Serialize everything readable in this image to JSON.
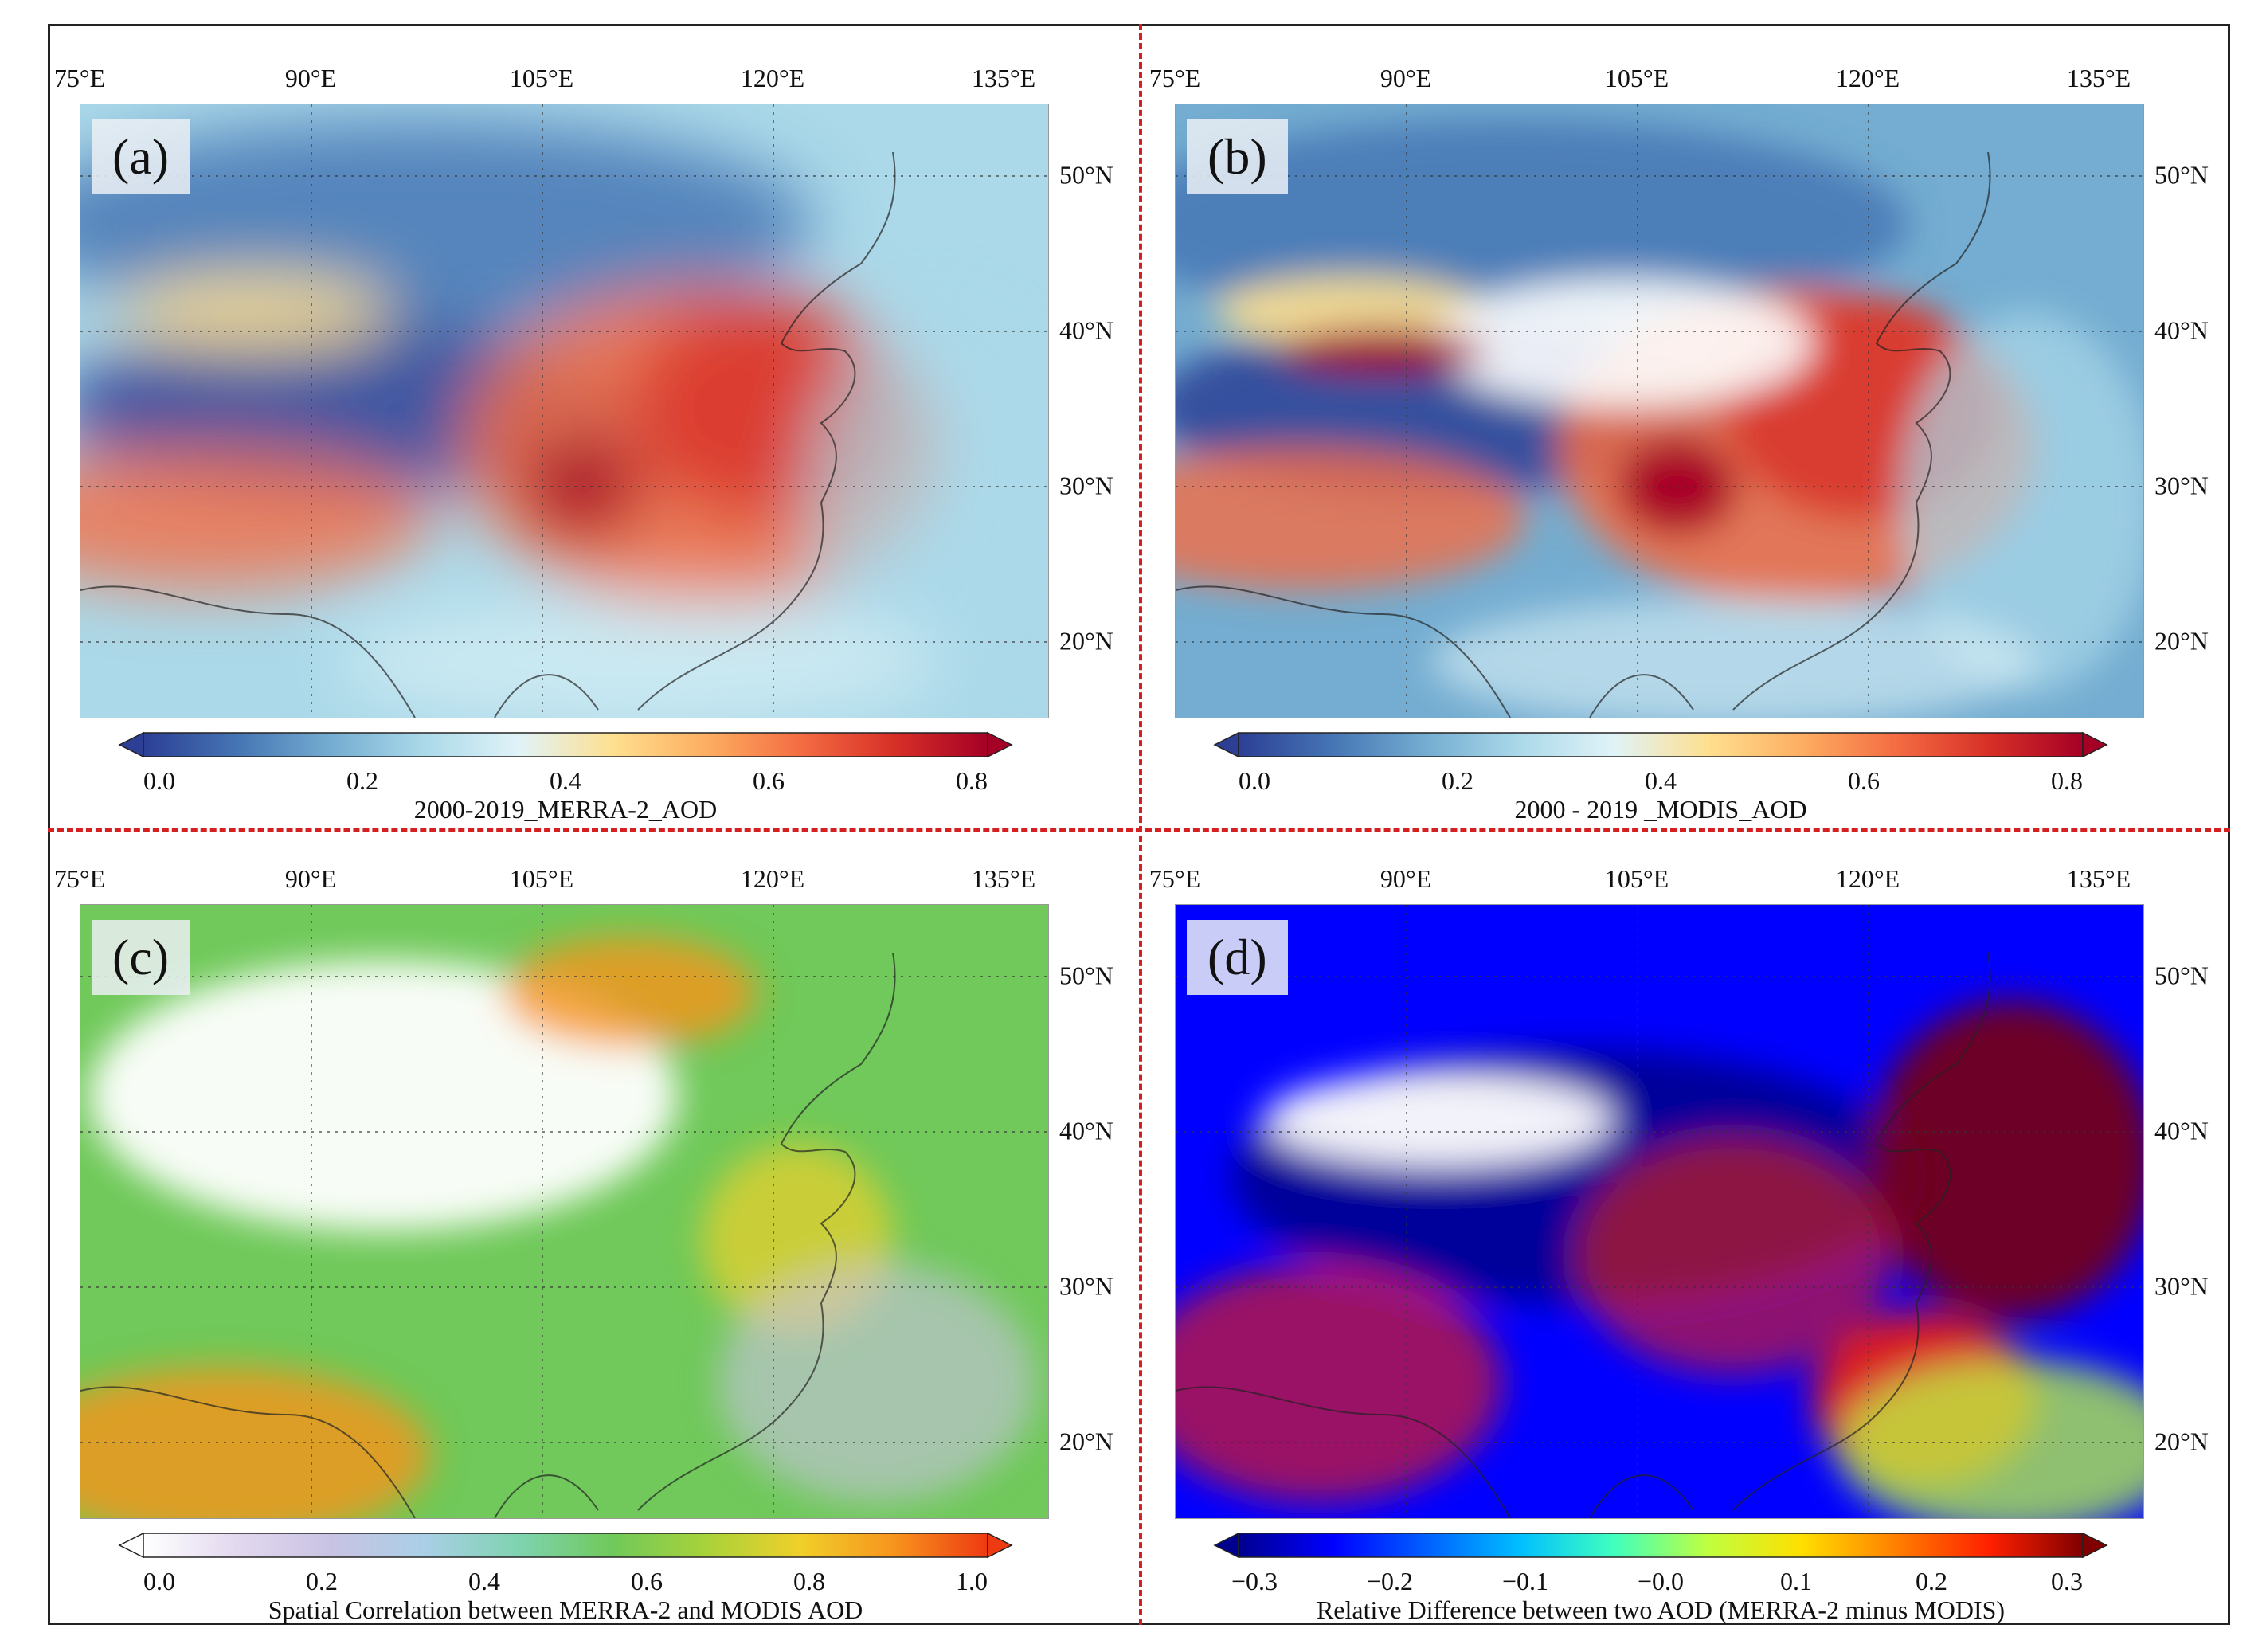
{
  "longitude_labels": [
    "75°E",
    "90°E",
    "105°E",
    "120°E",
    "135°E"
  ],
  "latitude_labels": [
    "50°N",
    "40°N",
    "30°N",
    "20°N"
  ],
  "panels": [
    {
      "label": "(a)",
      "title": "2000-2019_MERRA-2_AOD",
      "ticks": [
        "0.0",
        "0.2",
        "0.4",
        "0.6",
        "0.8"
      ],
      "range": [
        0.0,
        0.8
      ],
      "colors": [
        "#2c3f95",
        "#4575b4",
        "#74add1",
        "#abd9e9",
        "#e0f3f8",
        "#fee090",
        "#fdae61",
        "#f46d43",
        "#d73027",
        "#a50026"
      ]
    },
    {
      "label": "(b)",
      "title": "2000 - 2019 _MODIS_AOD",
      "ticks": [
        "0.0",
        "0.2",
        "0.4",
        "0.6",
        "0.8"
      ],
      "range": [
        0.0,
        0.8
      ],
      "colors": [
        "#2c3f95",
        "#4575b4",
        "#74add1",
        "#abd9e9",
        "#e0f3f8",
        "#fee090",
        "#fdae61",
        "#f46d43",
        "#d73027",
        "#a50026"
      ]
    },
    {
      "label": "(c)",
      "title": "Spatial Correlation between MERRA-2 and MODIS AOD",
      "ticks": [
        "0.0",
        "0.2",
        "0.4",
        "0.6",
        "0.8",
        "1.0"
      ],
      "range": [
        0.0,
        1.0
      ],
      "colors": [
        "#ffffff",
        "#e2d8ee",
        "#c9c3e3",
        "#a9cfe6",
        "#7fd3b0",
        "#70c95a",
        "#a8d23a",
        "#f0d02a",
        "#f7941d",
        "#ee3a12"
      ]
    },
    {
      "label": "(d)",
      "title": "Relative Difference between two AOD (MERRA-2 minus MODIS)",
      "ticks": [
        "−0.3",
        "−0.2",
        "−0.1",
        "−0.0",
        "0.1",
        "0.2",
        "0.3"
      ],
      "range": [
        -0.3,
        0.3
      ],
      "colors": [
        "#00008f",
        "#0000ff",
        "#0060ff",
        "#00bfff",
        "#40ffbf",
        "#bfff40",
        "#ffdf00",
        "#ff8000",
        "#ff2000",
        "#800000"
      ]
    }
  ]
}
